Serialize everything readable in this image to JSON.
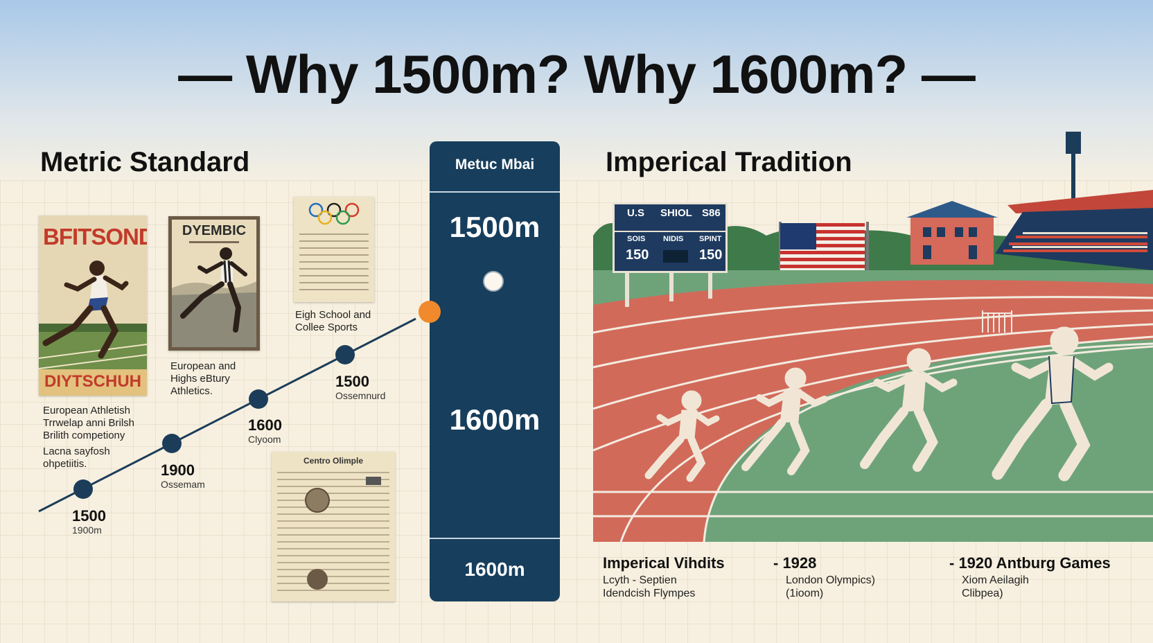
{
  "title": "— Why 1500m? Why 1600m? —",
  "left": {
    "heading": "Metric Standard",
    "poster1": {
      "top_text": "BFITSOND",
      "bottom_text": "DIYTSCHUH"
    },
    "poster2": {
      "top_text": "DYEMBIC"
    },
    "caption_main": "European Athletish Trrwelap anni Brilsh Brilith competiony",
    "caption_small": "Lacna sayfosh ohpetiitis.",
    "caption_european": "European and Highs eBtury Athletics.",
    "caption_school": "Eigh School and Collee Sports",
    "timeline": [
      {
        "year": "1500",
        "label": "1900m"
      },
      {
        "year": "1900",
        "label": "Ossemam"
      },
      {
        "year": "1600",
        "label": "Clyoom"
      },
      {
        "year": "1500",
        "label": "Ossemnurd"
      }
    ],
    "results_sheet_title": "Centro Olimple"
  },
  "panel": {
    "heading": "Metuc Mbai",
    "values": [
      "1500m",
      "1600m",
      "1600m"
    ]
  },
  "right": {
    "heading": "Imperical Tradition",
    "scoreboard": {
      "row1": [
        "U.S",
        "SHIOL",
        "S86"
      ],
      "row2": [
        "SOIS",
        "NIDIS",
        "SPINT"
      ],
      "row3": [
        "150",
        "150"
      ]
    },
    "bottom": [
      {
        "title": "Imperical Vihdits",
        "lines": [
          "Lcyth - Septien",
          "Idendcish Flympes"
        ]
      },
      {
        "title": "- 1928",
        "lines": [
          "London Olympics)",
          "(1ioom)"
        ]
      },
      {
        "title": "- 1920 Antburg Games",
        "lines": [
          "Xiom Aeilagih",
          "Clibpea)"
        ]
      }
    ]
  },
  "colors": {
    "navy": "#173e5c",
    "track": "#d26a5a",
    "field": "#6ea37a",
    "accent_orange": "#f08a2c"
  }
}
